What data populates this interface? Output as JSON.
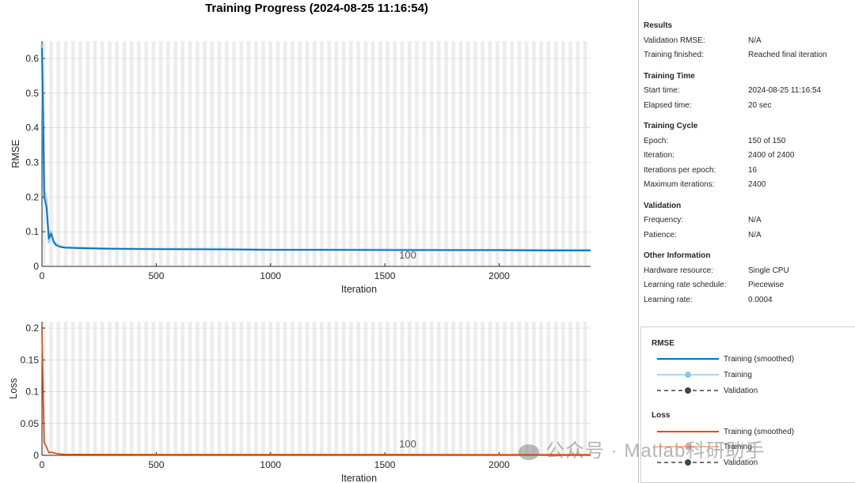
{
  "window": {
    "title": "Training Progress (2024-08-25 11:16:54)"
  },
  "chart_data": [
    {
      "type": "line",
      "ylabel": "RMSE",
      "xlabel": "Iteration",
      "xlim": [
        0,
        2400
      ],
      "ylim": [
        0,
        0.65
      ],
      "xticks": [
        "0",
        "500",
        "1000",
        "1500",
        "2000"
      ],
      "yticks": [
        "0",
        "0.1",
        "0.2",
        "0.3",
        "0.4",
        "0.5",
        "0.6"
      ],
      "epoch_marker_label": "100",
      "series": [
        {
          "name": "Training (smoothed)",
          "color": "#0072bd",
          "x": [
            0,
            5,
            10,
            20,
            30,
            40,
            50,
            60,
            80,
            100,
            150,
            200,
            300,
            500,
            800,
            1000,
            1200,
            1500,
            1800,
            2000,
            2200,
            2400
          ],
          "y": [
            0.63,
            0.45,
            0.2,
            0.17,
            0.08,
            0.095,
            0.075,
            0.062,
            0.056,
            0.054,
            0.053,
            0.052,
            0.051,
            0.05,
            0.049,
            0.048,
            0.048,
            0.047,
            0.047,
            0.047,
            0.046,
            0.046
          ]
        },
        {
          "name": "Training",
          "color": "#8ec7ec",
          "x": [
            0,
            5,
            10,
            20,
            30,
            40,
            50,
            60,
            80,
            100,
            150,
            200,
            300,
            500,
            800,
            1000,
            1200,
            1500,
            1800,
            2000,
            2200,
            2400
          ],
          "y": [
            0.64,
            0.43,
            0.22,
            0.19,
            0.07,
            0.1,
            0.07,
            0.065,
            0.058,
            0.055,
            0.054,
            0.053,
            0.051,
            0.05,
            0.05,
            0.048,
            0.048,
            0.048,
            0.047,
            0.047,
            0.047,
            0.047
          ]
        }
      ]
    },
    {
      "type": "line",
      "ylabel": "Loss",
      "xlabel": "Iteration",
      "xlim": [
        0,
        2400
      ],
      "ylim": [
        0,
        0.21
      ],
      "xticks": [
        "0",
        "500",
        "1000",
        "1500",
        "2000"
      ],
      "yticks": [
        "0",
        "0.05",
        "0.1",
        "0.15",
        "0.2"
      ],
      "epoch_marker_label": "100",
      "series": [
        {
          "name": "Training (smoothed)",
          "color": "#d95319",
          "x": [
            0,
            5,
            10,
            20,
            30,
            40,
            60,
            80,
            100,
            200,
            500,
            1000,
            1500,
            2000,
            2400
          ],
          "y": [
            0.2,
            0.1,
            0.02,
            0.013,
            0.004,
            0.005,
            0.003,
            0.002,
            0.0015,
            0.0014,
            0.0013,
            0.0012,
            0.0012,
            0.0011,
            0.0011
          ]
        }
      ]
    }
  ],
  "info": {
    "sections": [
      {
        "title": "Results",
        "rows": [
          {
            "k": "Validation RMSE:",
            "v": "N/A"
          },
          {
            "k": "Training finished:",
            "v": "Reached final iteration"
          }
        ]
      },
      {
        "title": "Training Time",
        "rows": [
          {
            "k": "Start time:",
            "v": "2024-08-25 11:16:54"
          },
          {
            "k": "Elapsed time:",
            "v": "20 sec"
          }
        ]
      },
      {
        "title": "Training Cycle",
        "rows": [
          {
            "k": "Epoch:",
            "v": "150 of 150"
          },
          {
            "k": "Iteration:",
            "v": "2400 of 2400"
          },
          {
            "k": "Iterations per epoch:",
            "v": "16"
          },
          {
            "k": "Maximum iterations:",
            "v": "2400"
          }
        ]
      },
      {
        "title": "Validation",
        "rows": [
          {
            "k": "Frequency:",
            "v": "N/A"
          },
          {
            "k": "Patience:",
            "v": "N/A"
          }
        ]
      },
      {
        "title": "Other Information",
        "rows": [
          {
            "k": "Hardware resource:",
            "v": "Single CPU"
          },
          {
            "k": "Learning rate schedule:",
            "v": "Piecewise"
          },
          {
            "k": "Learning rate:",
            "v": "0.0004"
          }
        ]
      }
    ]
  },
  "legend": {
    "rmse_title": "RMSE",
    "loss_title": "Loss",
    "rmse_smoothed": "Training (smoothed)",
    "rmse_training": "Training",
    "rmse_validation": "Validation",
    "loss_smoothed": "Training (smoothed)",
    "loss_training": "Training",
    "loss_validation": "Validation",
    "rmse_color": "#0072bd",
    "rmse_light_color": "#8ec7ec",
    "loss_color": "#d95319",
    "loss_light_color": "#f0a77f",
    "validation_color": "#444444"
  },
  "watermark": {
    "text": "公众号 · Matlab科研助手"
  }
}
